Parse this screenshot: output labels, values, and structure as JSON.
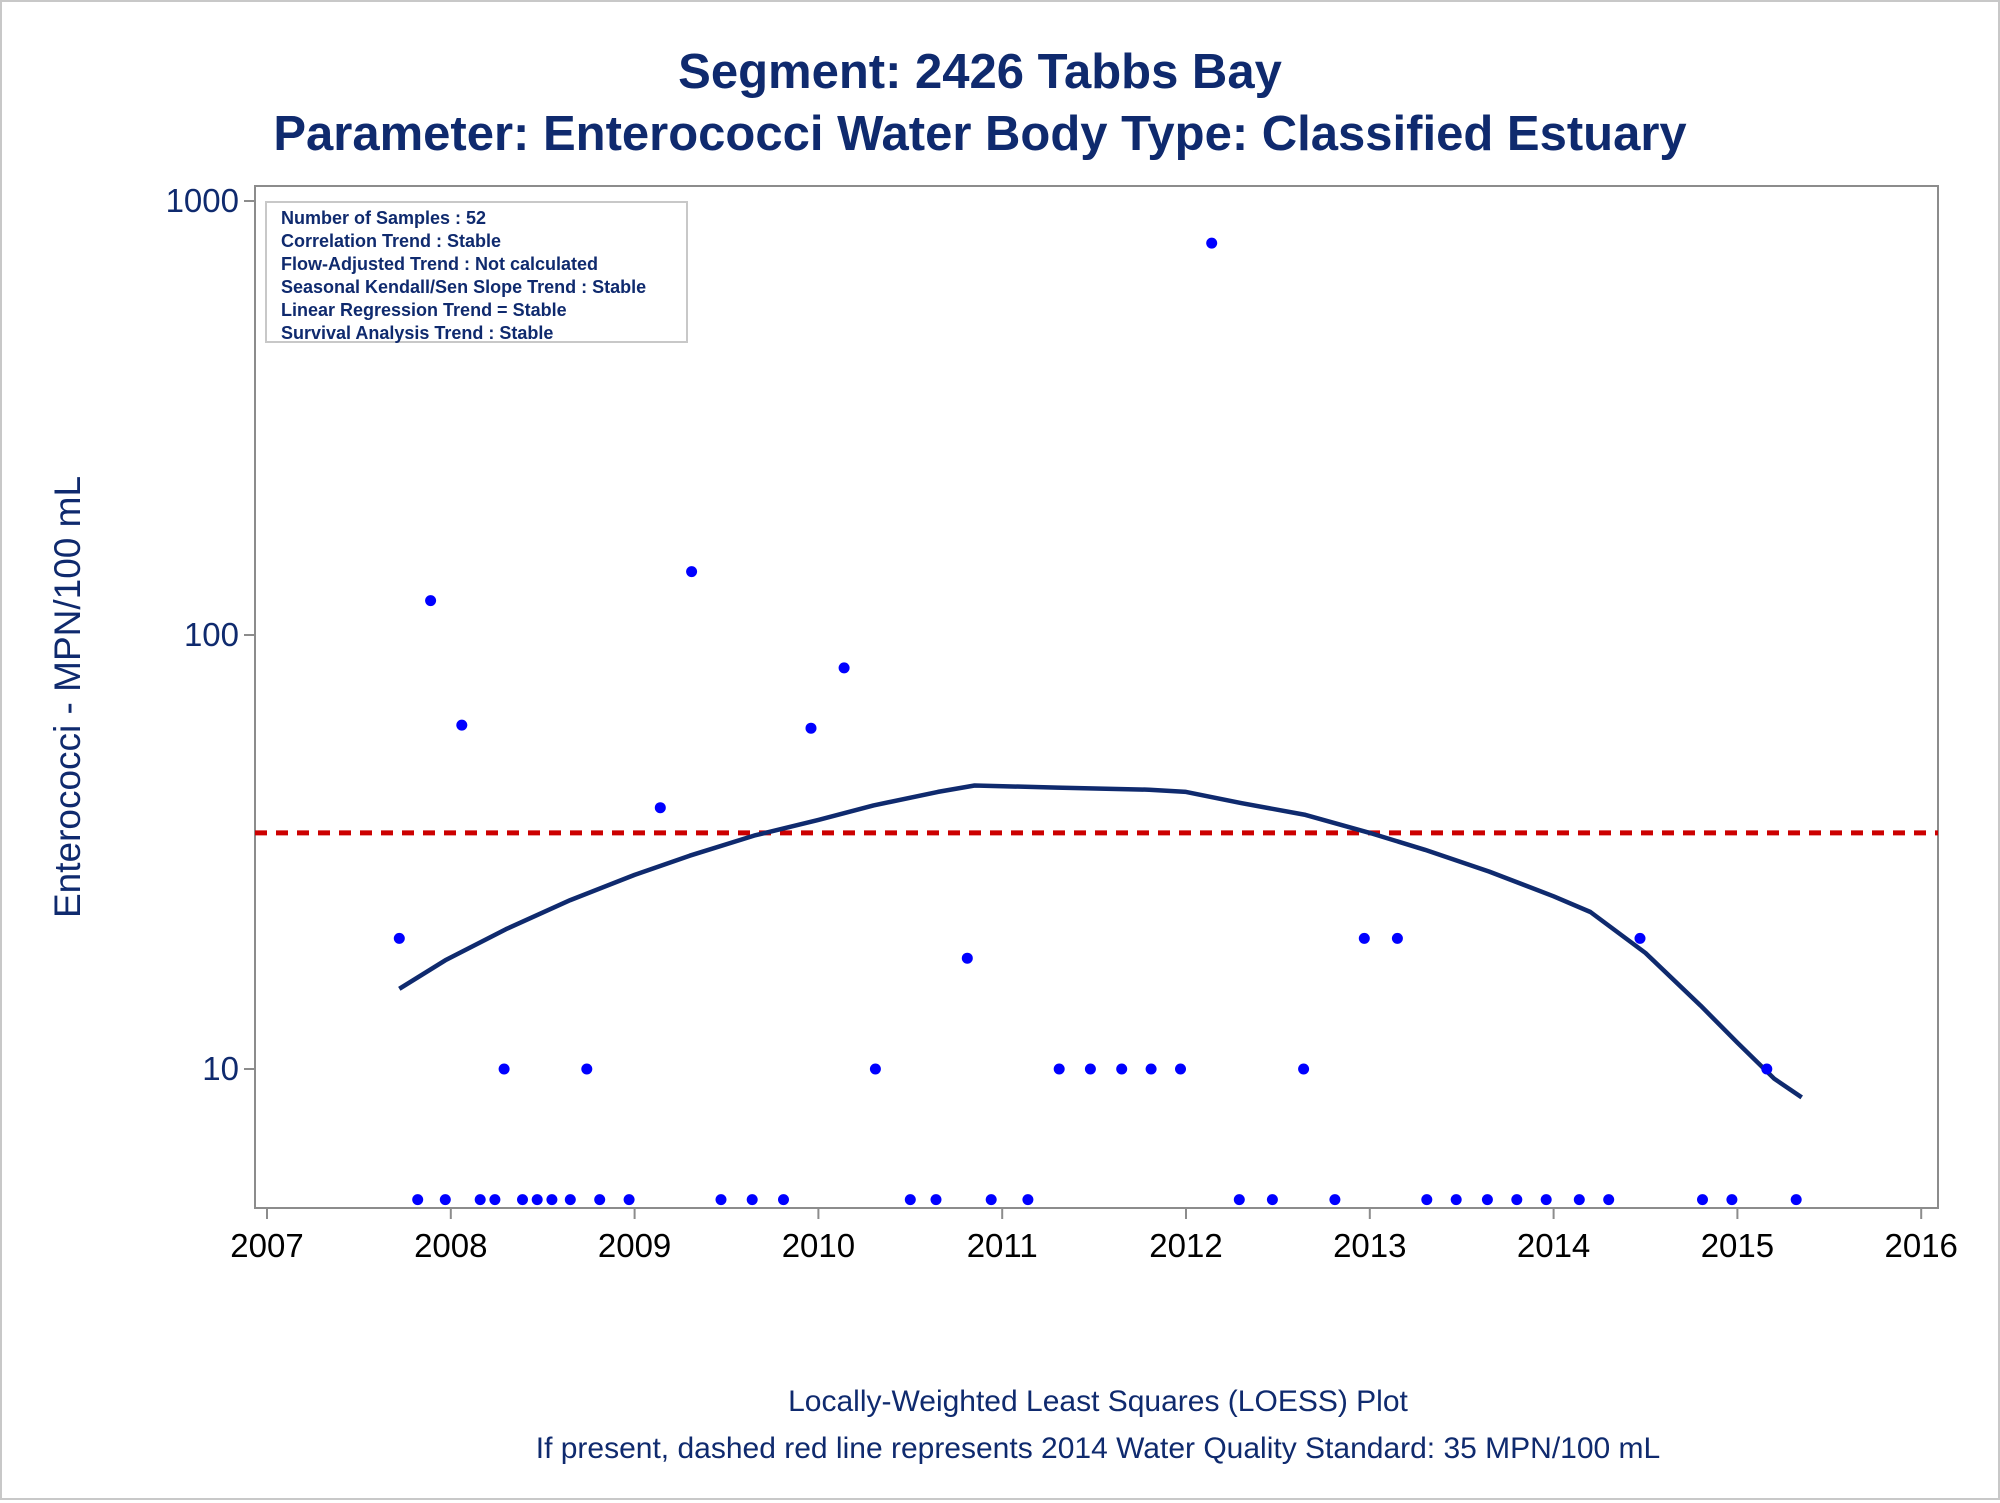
{
  "titles": {
    "line1": "Segment: 2426  Tabbs Bay",
    "line2": "Parameter: Enterococci   Water Body Type: Classified Estuary"
  },
  "inset": {
    "lines": [
      "Number of Samples : 52",
      "Correlation Trend : Stable",
      "Flow-Adjusted Trend : Not calculated",
      "Seasonal Kendall/Sen Slope Trend : Stable",
      "Linear Regression Trend = Stable",
      "Survival Analysis Trend : Stable"
    ]
  },
  "footnotes": {
    "line1": "Locally-Weighted Least Squares (LOESS) Plot",
    "line2": "If present, dashed red line represents 2014 Water Quality Standard: 35 MPN/100 mL"
  },
  "colors": {
    "title": "#0f2a6e",
    "points": "#0000ff",
    "loess": "#0f2a6e",
    "standard": "#cc0000",
    "axis": "#8c8c8c"
  },
  "chart_data": {
    "type": "scatter",
    "ylabel": "Enterococci - MPN/100 mL",
    "yscale": "log",
    "ylim": [
      4.999,
      1000
    ],
    "xlim": [
      2007,
      2016.1
    ],
    "xticks": [
      2007,
      2008,
      2009,
      2010,
      2011,
      2012,
      2013,
      2014,
      2015,
      2016
    ],
    "yticks": [
      10,
      100,
      1000
    ],
    "standard": {
      "value": 35,
      "style": "dashed"
    },
    "points": {
      "x": [
        2007.72,
        2007.82,
        2007.89,
        2007.97,
        2008.06,
        2008.16,
        2008.24,
        2008.29,
        2008.39,
        2008.47,
        2008.55,
        2008.65,
        2008.74,
        2008.81,
        2008.97,
        2009.14,
        2009.31,
        2009.47,
        2009.64,
        2009.81,
        2009.96,
        2010.14,
        2010.31,
        2010.5,
        2010.64,
        2010.81,
        2010.94,
        2011.14,
        2011.31,
        2011.48,
        2011.65,
        2011.81,
        2011.97,
        2012.14,
        2012.29,
        2012.47,
        2012.64,
        2012.81,
        2012.97,
        2013.15,
        2013.31,
        2013.47,
        2013.64,
        2013.8,
        2013.96,
        2014.14,
        2014.3,
        2014.47,
        2014.81,
        2014.97,
        2015.16,
        2015.32
      ],
      "y": [
        20,
        5,
        120,
        5,
        62,
        5,
        5,
        10,
        5,
        5,
        5,
        5,
        10,
        5,
        5,
        40,
        140,
        5,
        5,
        5,
        61,
        84,
        10,
        5,
        5,
        18,
        5,
        5,
        10,
        10,
        10,
        10,
        10,
        800,
        5,
        5,
        10,
        5,
        20,
        20,
        5,
        5,
        5,
        5,
        5,
        5,
        5,
        20,
        5,
        5,
        10,
        5
      ]
    },
    "loess": {
      "x": [
        2007.72,
        2007.97,
        2008.3,
        2008.65,
        2009.0,
        2009.3,
        2009.65,
        2010.0,
        2010.3,
        2010.65,
        2010.85,
        2011.3,
        2011.8,
        2012.0,
        2012.3,
        2012.65,
        2013.0,
        2013.3,
        2013.65,
        2014.0,
        2014.2,
        2014.5,
        2014.8,
        2015.0,
        2015.2,
        2015.35
      ],
      "y": [
        15.3,
        17.8,
        21,
        24.5,
        28,
        31,
        34.5,
        37.5,
        40.5,
        43.5,
        45,
        44.5,
        44,
        43.5,
        41,
        38.5,
        35,
        32,
        28.5,
        25,
        23,
        18.5,
        14,
        11.5,
        9.5,
        8.6
      ]
    }
  }
}
